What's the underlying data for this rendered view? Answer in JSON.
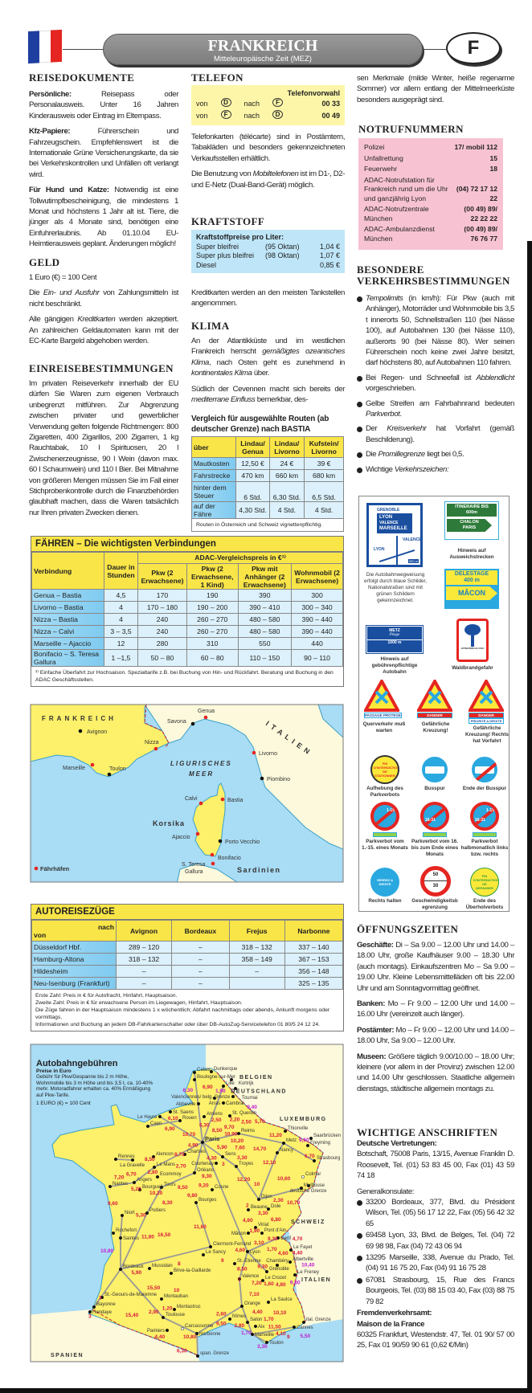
{
  "header": {
    "title": "FRANKREICH",
    "subtitle": "Mitteleuropäische Zeit (MEZ)",
    "country_code": "F",
    "flag_colors": [
      "#1f3fa0",
      "#ffffff",
      "#e52521"
    ]
  },
  "reisedokumente": {
    "heading": "REISEDOKUMENTE",
    "paragraphs": [
      [
        {
          "b": "Persönliche: "
        },
        {
          "t": "Reisepass oder Personalausweis. Unter 16 Jahren Kinderausweis oder Eintrag im Elternpass."
        }
      ],
      [
        {
          "b": "Kfz-Papiere: "
        },
        {
          "t": "Führerschein und Fahrzeugschein. Empfehlenswert ist die Internationale Grüne Versicherungskarte, da sie bei Verkehrskontrollen und Unfällen oft verlangt wird."
        }
      ],
      [
        {
          "b": "Für Hund und Katze: "
        },
        {
          "t": "Notwendig ist eine Tollwutimpfbescheinigung, die mindestens 1 Monat und höchstens 1 Jahr alt ist. Tiere, die jünger als 4 Monate sind, benötigen eine Einfuhrerlaubnis. Ab 01.10.04 EU-Heimtierausweis geplant. Änderungen möglich!"
        }
      ]
    ]
  },
  "geld": {
    "heading": "GELD",
    "paragraphs": [
      [
        {
          "t": "1 Euro (€) = 100 Cent"
        }
      ],
      [
        {
          "t": "Die "
        },
        {
          "i": "Ein- und Ausfuhr"
        },
        {
          "t": " von Zahlungsmitteln ist nicht beschränkt."
        }
      ],
      [
        {
          "t": "Alle gängigen "
        },
        {
          "i": "Kreditkarten"
        },
        {
          "t": " werden akzeptiert. An zahlreichen Geldautomaten kann mit der EC-Karte Bargeld abgehoben werden."
        }
      ]
    ]
  },
  "einreise": {
    "heading": "EINREISEBESTIMMUNGEN",
    "paragraphs": [
      [
        {
          "t": "Im privaten Reiseverkehr innerhalb der EU dürfen Sie Waren zum eigenen Verbrauch unbegrenzt mitführen. Zur Abgrenzung zwischen privater und gewerblicher Verwendung gelten folgende Richtmengen: 800 Zigaretten, 400 Zigarillos, 200 Zigarren, 1 kg Rauchtabak, 10 l Spirituosen, 20 l Zwischenerzeugnisse, 90 l Wein (davon max. 60 l Schaumwein) und 110 l Bier. Bei Mitnahme von größeren Mengen müssen Sie im Fall einer Stichprobenkontrolle durch die Finanzbehörden glaubhaft machen, dass die Waren tatsächlich nur Ihren privaten Zwecken dienen."
        }
      ]
    ]
  },
  "telefon": {
    "heading": "TELEFON",
    "box_header": "Telefonvorwahl",
    "rows": [
      {
        "von": "von",
        "from": "D",
        "nach": "nach",
        "to": "F",
        "code": "00 33"
      },
      {
        "von": "von",
        "from": "F",
        "nach": "nach",
        "to": "D",
        "code": "00 49"
      }
    ],
    "paragraphs": [
      [
        {
          "t": "Telefonkarten (télécarte) sind in Postämtern, Tabakläden und besonders gekennzeichneten Verkaufsstellen erhältlich."
        }
      ],
      [
        {
          "t": "Die Benutzung von "
        },
        {
          "i": "Mobiltelefonen"
        },
        {
          "t": " ist im D1-, D2- und E-Netz (Dual-Band-Gerät) möglich."
        }
      ]
    ]
  },
  "kraftstoff": {
    "heading": "KRAFTSTOFF",
    "box_header": "Kraftstoffpreise pro Liter:",
    "rows": [
      {
        "name": "Super bleifrei",
        "octane": "(95 Oktan)",
        "price": "1,04 €"
      },
      {
        "name": "Super plus bleifrei",
        "octane": "(98 Oktan)",
        "price": "1,07 €"
      },
      {
        "name": "Diesel",
        "octane": "",
        "price": "0,85 €"
      }
    ],
    "paragraphs": [
      [
        {
          "t": "Kreditkarten werden an den meisten Tankstellen angenommen."
        }
      ]
    ]
  },
  "klima": {
    "heading": "KLIMA",
    "paragraphs": [
      [
        {
          "t": "An der Atlantikküste und im westlichen Frankreich herrscht "
        },
        {
          "i": "gemäßigtes ozeanisches Klima"
        },
        {
          "t": ", nach Osten geht es zunehmend in "
        },
        {
          "i": "kontinentales Klima"
        },
        {
          "t": " über."
        }
      ],
      [
        {
          "t": "Südlich der Cevennen macht sich bereits der "
        },
        {
          "i": "mediterrane Einfluss"
        },
        {
          "t": " bemerkbar, des-"
        }
      ]
    ],
    "continuation": [
      [
        {
          "t": "sen Merkmale (milde Winter, heiße regenarme Sommer) vor allem entlang der Mittelmeerküste besonders ausgeprägt sind."
        }
      ]
    ]
  },
  "vergleich": {
    "title": "Vergleich für ausgewählte Routen (ab deutscher Grenze) nach BASTIA",
    "headers": [
      "über",
      "Lindau/ Genua",
      "Lindau/ Livorno",
      "Kufstein/ Livorno"
    ],
    "rows": [
      [
        "Mautkosten",
        "12,50 €",
        "24 €",
        "39 €"
      ],
      [
        "Fahrstrecke",
        "470 km",
        "660 km",
        "680 km"
      ],
      [
        "hinter dem Steuer",
        "6 Std.",
        "6,30 Std.",
        "6,5 Std."
      ],
      [
        "auf der Fähre",
        "4,30 Std.",
        "4 Std.",
        "4 Std."
      ]
    ],
    "footnote": "Routen in Österreich und Schweiz vignettenpflichtig."
  },
  "notruf": {
    "heading": "NOTRUFNUMMERN",
    "rows": [
      {
        "label": "Polizei",
        "value": "17/ mobil 112"
      },
      {
        "label": "Unfallrettung",
        "value": "15"
      },
      {
        "label": "Feuerwehr",
        "value": "18"
      },
      {
        "label": "ADAC-Notrufstation für Frankreich rund um die Uhr und ganzjährig Lyon",
        "value": "(04) 72 17 12 22"
      },
      {
        "label": "ADAC-Notrufzentrale München",
        "value": "(00 49) 89/ 22 22 22"
      },
      {
        "label": "ADAC-Ambulanzdienst München",
        "value": "(00 49) 89/ 76 76 77"
      }
    ]
  },
  "verkehr": {
    "heading": "BESONDERE VERKEHRSBESTIMMUNGEN",
    "bullets": [
      [
        {
          "i": "Tempolimits"
        },
        {
          "t": " (in km/h): Für Pkw (auch mit Anhänger), Motorräder und Wohnmobile bis 3,5 t innerorts 50, Schnellstraßen 110 (bei Nässe 100), auf Autobahnen 130 (bei Nässe 110), außerorts 90 (bei Nässe 80). Wer seinen Führerschein noch keine zwei Jahre besitzt, darf höchstens 80, auf Autobahnen 110 fahren."
        }
      ],
      [
        {
          "t": "Bei Regen- und Schneefall ist "
        },
        {
          "i": "Abblendlicht"
        },
        {
          "t": " vorgeschrieben."
        }
      ],
      [
        {
          "t": "Gelbe Streifen am Fahrbahnrand bedeuten "
        },
        {
          "i": "Parkverbot"
        },
        {
          "t": "."
        }
      ],
      [
        {
          "t": "Der "
        },
        {
          "i": "Kreisverkehr"
        },
        {
          "t": " hat Vorfahrt (gemäß Beschilderung)."
        }
      ],
      [
        {
          "t": "Die "
        },
        {
          "i": "Promillegrenze"
        },
        {
          "t": " liegt bei 0,5."
        }
      ],
      [
        {
          "t": "Wichtige "
        },
        {
          "i": "Verkehrszeichen:"
        }
      ]
    ]
  },
  "signs": {
    "autobahn": {
      "lines": [
        "GRENOBLE",
        "LYON",
        "VALENCE",
        "MARSEILLE",
        "VALENCE",
        "LYON",
        "300 m"
      ],
      "caption": "Die Autobahnwegweisung erfolgt durch blaue Schilder, Nationalstraßen sind mit grünen Schildern gekennzeichnet."
    },
    "itineraire": {
      "lines": [
        "ITINERAIRE BIS",
        "600m",
        "CHALON",
        "PARIS"
      ],
      "caption": "Hinweis auf Ausweichstrecken"
    },
    "delestage": {
      "lines": [
        "DELESTAGE",
        "400 m",
        "MÂCON"
      ]
    },
    "peage": {
      "lines": [
        "METZ",
        "Péage",
        "1000 m"
      ],
      "caption": "Hinweis auf gebührenpflichtige Autobahn"
    },
    "feu": {
      "text": "ATTENTION AU FEU",
      "caption": "Waldbrandgefahr"
    },
    "tri1": {
      "plate": "PASSAGE PROTEGE",
      "caption": "Querverkehr muß warten"
    },
    "tri2": {
      "plate": "DANGER",
      "caption": "Gefährliche Kreuzung!"
    },
    "tri3": {
      "plate": "DANGER",
      "plate2": "PRIORITE A DROITE",
      "caption": "Gefährliche Kreuzung! Rechts hat Vorfahrt"
    },
    "fin_stat": {
      "text": "FIN D'INTERDICTION DE STATIONNER",
      "caption": "Aufhebung des Parkverbots"
    },
    "bus": {
      "caption": "Busspur"
    },
    "bus_end": {
      "caption": "Ende der Busspur"
    },
    "park1": {
      "num": "1-15",
      "caption": "Parkverbot vom 1.-15. eines Monats"
    },
    "park2": {
      "num": "16-31",
      "caption": "Parkverbot vom 16. bis zum Ende eines Monats"
    },
    "park3": {
      "num": "1-15",
      "num2": "16-31",
      "caption": "Parkverbot halbmonatlich links bzw. rechts"
    },
    "serrez": {
      "text": "SERREZ A DROITE",
      "caption": "Rechts halten"
    },
    "speed": {
      "v1": "50",
      "v2": "30",
      "caption": "Geschwindigkeitsbegrenzung"
    },
    "fin_dep": {
      "text": "FIN D'INTERDICTION DE DEPASSER",
      "caption": "Ende des Überholverbots"
    }
  },
  "oeffnung": {
    "heading": "ÖFFNUNGSZEITEN",
    "paragraphs": [
      [
        {
          "b": "Geschäfte: "
        },
        {
          "t": "Di – Sa 9.00 – 12.00 Uhr und 14.00 – 18.00 Uhr, große Kaufhäuser 9.00 – 18.30 Uhr (auch montags). Einkaufszentren Mo – Sa 9.00 – 19.00 Uhr. Kleine Lebensmittelläden oft bis 22.00 Uhr und am Sonntagvormittag geöffnet."
        }
      ],
      [
        {
          "b": "Banken: "
        },
        {
          "t": "Mo – Fr 9.00 – 12.00 Uhr und 14.00 – 16.00 Uhr (vereinzelt auch länger)."
        }
      ],
      [
        {
          "b": "Postämter: "
        },
        {
          "t": "Mo – Fr 9.00 – 12.00 Uhr und 14.00 – 18.00 Uhr, Sa 9.00 – 12.00 Uhr."
        }
      ],
      [
        {
          "b": "Museen: "
        },
        {
          "t": "Größere täglich 9.00/10.00 – 18.00 Uhr; kleinere (vor allem in der Provinz) zwischen 12.00 und 14.00 Uhr geschlossen. Staatliche allgemein dienstags, städtische allgemein montags zu."
        }
      ]
    ]
  },
  "anschriften": {
    "heading": "WICHTIGE ANSCHRIFTEN",
    "vertretungen_label": "Deutsche Vertretungen:",
    "botschaft": "Botschaft, 75008 Paris, 13/15, Avenue Franklin D. Roosevelt, Tel. (01) 53 83 45 00, Fax (01) 43 59 74 18",
    "konsulate_label": "Generalkonsulate:",
    "konsulate": [
      "33200 Bordeaux, 377, Blvd. du Président Wilson, Tel. (05) 56 17 12 22, Fax (05) 56 42 32 65",
      "69458 Lyon, 33, Blvd. de Belges, Tel. (04) 72 69 98 98, Fax (04) 72 43 06 94",
      "13295 Marseille, 338, Avenue du Prado, Tel. (04) 91 16 75 20, Fax (04) 91 16 75 28",
      "67081 Strasbourg, 15, Rue des Francs Bourgeois, Tel. (03) 88 15 03 40, Fax (03) 88 75 79 82"
    ],
    "fremden_label": "Fremdenverkehrsamt:",
    "maison": "Maison de la France",
    "maison_addr": "60325 Frankfurt, Westendstr. 47, Tel. 01 90/ 57 00 25, Fax 01 90/59 90 61 (0,62 €/Min)"
  },
  "faehren": {
    "title": "FÄHREN – Die wichtigsten Verbindungen",
    "col_verbindung": "Verbindung",
    "col_dauer": "Dauer in Stunden",
    "group_header": "ADAC-Vergleichspreis in €¹⁾",
    "cols": [
      "Pkw (2 Erwachsene)",
      "Pkw (2 Erwachsene, 1 Kind)",
      "Pkw mit Anhänger (2 Erwachsene)",
      "Wohnmobil (2 Erwachsene)"
    ],
    "rows": [
      [
        "Genua – Bastia",
        "4,5",
        "170",
        "190",
        "390",
        "300"
      ],
      [
        "Livorno – Bastia",
        "4",
        "170 – 180",
        "190 – 200",
        "390 – 410",
        "300 – 340"
      ],
      [
        "Nizza – Bastia",
        "4",
        "240",
        "260 – 270",
        "480 – 580",
        "390 – 440"
      ],
      [
        "Nizza – Calvi",
        "3 – 3,5",
        "240",
        "260 – 270",
        "480 – 580",
        "390 – 440"
      ],
      [
        "Marseille – Ajaccio",
        "12",
        "280",
        "310",
        "550",
        "440"
      ],
      [
        "Bonifacio – S. Teresa Gallura",
        "1 –1,5",
        "50 – 80",
        "60 – 80",
        "110 – 150",
        "90 – 110"
      ]
    ],
    "footnote": "¹⁾ Einfache Überfahrt zur Hochsaison. Spezialtarife z.B. bei Buchung von Hin- und Rückfahrt. Beratung und Buchung in den ADAC Geschäftsstellen."
  },
  "map_ferry": {
    "labels": {
      "frankreich": "FRANKREICH",
      "italien": "ITALIEN",
      "meer1": "LIGURISCHES",
      "meer2": "MEER",
      "korsika": "Korsika",
      "sardinien": "Sardinien",
      "legend": "Fährhäfen"
    },
    "cities": [
      "Avignon",
      "Nizza",
      "Marseille",
      "Toulon",
      "Savona",
      "Genua",
      "Livorno",
      "Piombino",
      "Calvi",
      "Bastia",
      "Ajaccio",
      "Porto Vecchio",
      "Bonifacio",
      "S. Teresa",
      "Gallura"
    ],
    "ferry_port_color": "#e52521"
  },
  "autozug": {
    "title": "AUTOREISEZÜGE",
    "nach": "nach",
    "von": "von",
    "cols": [
      "Avignon",
      "Bordeaux",
      "Frejus",
      "Narbonne"
    ],
    "rows": [
      [
        "Düsseldorf Hbf.",
        "289 – 120",
        "–",
        "318 – 132",
        "337 – 140"
      ],
      [
        "Hamburg-Altona",
        "318 – 132",
        "–",
        "358 – 149",
        "367 – 153"
      ],
      [
        "Hildesheim",
        "–",
        "–",
        "–",
        "356 – 148"
      ],
      [
        "Neu-Isenburg (Frankfurt)",
        "–",
        "–",
        "",
        "325 – 135"
      ]
    ],
    "notes": [
      "Erste Zahl:   Preis in € für Autofracht, Hinfahrt, Hauptsaison.",
      "Zweite Zahl:   Preis in € für erwachsene Person im Liegewagen, Hinfahrt, Hauptsaison.",
      "Die Züge fahren in der Hauptsaison mindestens 1 x wöchentlich; Abfahrt nachmittags oder abends, Ankunft morgens oder vormittags.",
      "Informationen und Buchung an jedem DB-Fahrkartenschalter oder über DB-AutoZug-Servicetelefon 01 80/5 24 12 24."
    ]
  },
  "map_toll": {
    "title": "Autobahngebühren",
    "subtitle": "Preise in Euro",
    "desc": "Gebühr für Pkw/Gespanne bis 2 m Höhe, Wohnmobile bis 3 m Höhe und bis 3,5 t, ca. 10-40% mehr. Motoradfahrer erhalten ca. 40% Ermäßigung auf Pkw-Tarife.",
    "euro": "1 EURO (€) = 100 Cent",
    "countries": [
      "BELGIEN",
      "DEUTSCHLAND",
      "LUXEMBURG",
      "SCHWEIZ",
      "ITALIEN",
      "SPANIEN"
    ],
    "cities": [
      "Calais",
      "Dunkerque",
      "Boulogne-sur-Mer",
      "Lille",
      "Kortrijk",
      "Tournai",
      "Valenciennes/ belg. Grenze",
      "Arras",
      "Abbeville",
      "Cambrai",
      "St. Saens",
      "Le Havre",
      "Rouen",
      "Amiens",
      "St. Quentin",
      "Caen",
      "Reims",
      "Paris",
      "Thionville",
      "Saarbrücken",
      "Metz",
      "Freyming",
      "Nancy",
      "Sens",
      "Troyes",
      "Strasbourg",
      "Colmar",
      "Rennes",
      "La Gravelle",
      "Alencon",
      "Chartres",
      "Le Mans",
      "Courtenay",
      "Orléans",
      "Angers",
      "Ecommoy",
      "Nantes",
      "Bourgueil",
      "Tours",
      "Cosne",
      "Mulhouse",
      "deutsche Grenze",
      "Dijon",
      "Bourges",
      "Beaune",
      "Dole",
      "Niort",
      "Poitiers",
      "Rochefort",
      "Saintes",
      "Clermont-Ferrand",
      "Le Sancy",
      "Viriat",
      "Pont d'Ain",
      "Mâcon",
      "Genf",
      "Le Fayet",
      "Lyon",
      "Albertville",
      "Bordeaux",
      "Mussidan",
      "St.-Etienne",
      "Brive-la-Gaillarde",
      "Grenoble",
      "Chambéry",
      "Le Freney",
      "Valence",
      "Le Crozet",
      "St.-Geours-de-Maremne",
      "Montauban",
      "La Saulce",
      "Bayonne",
      "Orange",
      "Hendaye",
      "Montastruc",
      "Toulouse",
      "Nîmes",
      "Salon",
      "Aix",
      "ital. Grenze",
      "Cannes",
      "Carcassonne",
      "Pamiers",
      "Narbonne",
      "Marseille",
      "Toulon",
      "span. Grenze"
    ],
    "tolls": [
      "6,90",
      "6,30",
      "1,90",
      "2,20",
      "9,40",
      "2,50",
      "2,50",
      "9,70",
      "6,10",
      "6,30",
      "10,90",
      "5,70",
      "6,90",
      "10,20",
      "10,70",
      "8,50",
      "11,20",
      "9,60",
      "7,60",
      "4,90",
      "5,90",
      "14,70",
      "8,70",
      "4,30",
      "3,30",
      "12,10",
      "6,70",
      "8,50",
      "2,80",
      "9,30",
      "3",
      "6,70",
      "2,70",
      "12,20",
      "10,60",
      "7,20",
      "10,20",
      "9,20",
      "10",
      "5,20",
      "9,50",
      "9,80",
      "9,60",
      "8,30",
      "2,30",
      "2",
      "10,70",
      "5,30",
      "3,30",
      "4,60",
      "1,90",
      "6,80",
      "11,60",
      "11,80",
      "16,50",
      "9,30",
      "4,60",
      "3,10",
      "4,70",
      "1,70",
      "4,60",
      "10,80",
      "9",
      "9,30",
      "10,40",
      "4,40",
      "5,90",
      "8",
      "8,50",
      "9,80",
      "7",
      "7,20",
      "4,80",
      "1,60",
      "15,50",
      "10",
      "7,10",
      "3",
      "2,90",
      "1,20",
      "2,60",
      "4,40",
      "10,10",
      "15,40",
      "3",
      "9,50",
      "2,80",
      "1,70",
      "11,50",
      "5,50",
      "4,40",
      "1,70",
      "4,10",
      "9",
      "10,80",
      "3,30",
      "6,30"
    ],
    "colors": {
      "sea": "#a9dcf5",
      "france": "#fdf06a",
      "neighbors": "#fdf9dc",
      "toll": "#d8183c",
      "toll_alt": "#c21ad0",
      "road": "#999999"
    }
  }
}
